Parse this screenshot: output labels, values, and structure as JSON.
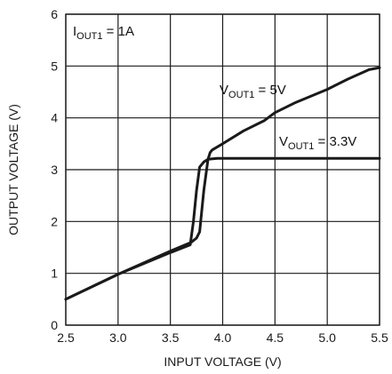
{
  "chart_data": {
    "type": "line",
    "xlabel": "INPUT VOLTAGE (V)",
    "ylabel": "OUTPUT VOLTAGE (V)",
    "xlim": [
      2.5,
      5.5
    ],
    "ylim": [
      0,
      6
    ],
    "xticks": [
      "2.5",
      "3.0",
      "3.5",
      "4.0",
      "4.5",
      "5.0",
      "5.5"
    ],
    "yticks": [
      "0",
      "1",
      "2",
      "3",
      "4",
      "5",
      "6"
    ],
    "grid": true,
    "annotations": {
      "condition": {
        "base": "I",
        "sub": "OUT1",
        "rest": " = 1A"
      },
      "series_5v": {
        "base": "V",
        "sub": "OUT1",
        "rest": " = 5V"
      },
      "series_3v3": {
        "base": "V",
        "sub": "OUT1",
        "rest": " = 3.3V"
      }
    },
    "series": [
      {
        "name": "VOUT1 = 5V",
        "x": [
          2.5,
          3.0,
          3.5,
          3.7,
          3.75,
          3.78,
          3.82,
          3.86,
          3.88,
          3.9,
          4.0,
          4.2,
          4.4,
          4.5,
          4.7,
          5.0,
          5.2,
          5.4,
          5.5
        ],
        "y": [
          0.5,
          0.98,
          1.43,
          1.6,
          1.68,
          1.8,
          2.6,
          3.2,
          3.33,
          3.38,
          3.5,
          3.75,
          3.95,
          4.1,
          4.3,
          4.55,
          4.75,
          4.93,
          4.97
        ]
      },
      {
        "name": "VOUT1 = 3.3V",
        "x": [
          2.5,
          3.0,
          3.5,
          3.69,
          3.72,
          3.75,
          3.78,
          3.82,
          3.86,
          3.95,
          4.5,
          5.0,
          5.5
        ],
        "y": [
          0.5,
          0.98,
          1.4,
          1.55,
          2.0,
          2.6,
          3.05,
          3.15,
          3.2,
          3.22,
          3.22,
          3.22,
          3.22
        ]
      }
    ]
  }
}
